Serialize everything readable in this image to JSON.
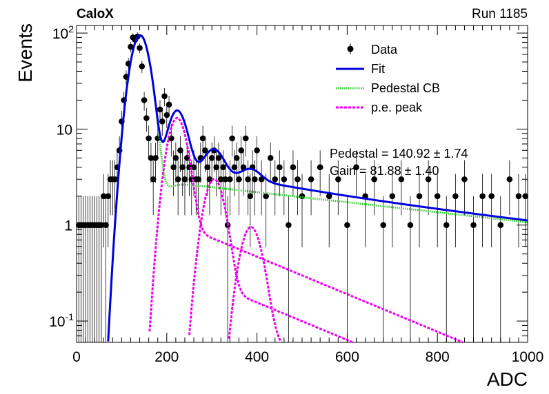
{
  "header": {
    "experiment": "CaloX",
    "run": "Run 1185"
  },
  "chart_data": {
    "type": "scatter",
    "xlabel": "ADC",
    "ylabel": "Events",
    "xlim": [
      0,
      1000
    ],
    "ylim": [
      0.06,
      120
    ],
    "yscale": "log",
    "x_ticks": [
      "0",
      "200",
      "400",
      "600",
      "800",
      "1000"
    ],
    "y_ticks": [
      {
        "base": "10",
        "exp": "-1",
        "value": 0.1
      },
      {
        "base": "1",
        "exp": "",
        "value": 1
      },
      {
        "base": "10",
        "exp": "",
        "value": 10
      },
      {
        "base": "10",
        "exp": "2",
        "value": 100
      }
    ],
    "legend": {
      "position": "top-right",
      "entries": [
        {
          "label": "Data",
          "style": "marker",
          "color": "#000000"
        },
        {
          "label": "Fit",
          "style": "solid",
          "color": "#0000dd"
        },
        {
          "label": "Pedestal CB",
          "style": "dotted",
          "color": "#33cc33"
        },
        {
          "label": "p.e. peak",
          "style": "dashed",
          "color": "#ee00ee"
        }
      ]
    },
    "fit_results": [
      "Pedestal = 140.92 ± 1.74",
      "Gain = 81.88 ± 1.40"
    ],
    "data": {
      "x": [
        5,
        10,
        15,
        20,
        25,
        30,
        35,
        40,
        45,
        50,
        55,
        60,
        65,
        70,
        75,
        80,
        85,
        90,
        95,
        100,
        105,
        110,
        115,
        120,
        125,
        130,
        135,
        140,
        145,
        150,
        155,
        160,
        165,
        170,
        175,
        180,
        185,
        190,
        195,
        200,
        205,
        210,
        215,
        220,
        225,
        230,
        235,
        240,
        245,
        250,
        255,
        260,
        265,
        270,
        275,
        280,
        285,
        290,
        295,
        300,
        305,
        310,
        315,
        320,
        325,
        330,
        335,
        340,
        345,
        350,
        355,
        360,
        365,
        370,
        375,
        380,
        385,
        390,
        395,
        400,
        410,
        420,
        430,
        440,
        450,
        460,
        470,
        480,
        490,
        500,
        520,
        540,
        560,
        580,
        600,
        620,
        640,
        660,
        680,
        700,
        720,
        740,
        760,
        780,
        800,
        820,
        840,
        860,
        880,
        900,
        920,
        940,
        960,
        980,
        995
      ],
      "y": [
        1,
        1,
        1,
        1,
        1,
        1,
        1,
        1,
        1,
        1,
        1,
        2,
        1,
        2,
        3,
        3,
        3,
        4,
        6,
        12,
        20,
        35,
        48,
        72,
        90,
        85,
        92,
        70,
        45,
        20,
        13,
        8,
        5,
        3,
        5,
        8,
        16,
        12,
        22,
        14,
        18,
        8,
        4,
        5,
        3,
        6,
        4,
        3,
        5,
        4,
        3,
        4,
        3,
        3,
        5,
        8,
        6,
        4,
        3,
        5,
        6,
        4,
        5,
        3,
        4,
        3,
        1,
        3,
        8,
        4,
        5,
        3,
        6,
        4,
        8,
        3,
        2,
        4,
        3,
        6,
        3,
        2,
        5,
        3,
        4,
        3,
        1,
        4,
        3,
        2,
        3,
        4,
        2,
        3,
        1,
        4,
        2,
        3,
        1,
        2,
        3,
        1,
        2,
        3,
        2,
        1,
        2,
        3,
        1,
        2,
        2,
        1,
        3,
        2,
        2
      ]
    },
    "fit_params": {
      "pedestal_mu": 140.92,
      "pedestal_sigma": 18.5,
      "pedestal_amp": 95,
      "tail_amp": 3.0,
      "tail_slope": 0.0012,
      "gain": 81.88,
      "pe_peaks": [
        {
          "amp": 13,
          "sigma": 19
        },
        {
          "amp": 3.0,
          "sigma": 20
        },
        {
          "amp": 0.95,
          "sigma": 21
        }
      ]
    },
    "colors": {
      "data": "#000000",
      "fit": "#0000dd",
      "pedestal": "#33cc33",
      "pe": "#ee00ee"
    }
  }
}
